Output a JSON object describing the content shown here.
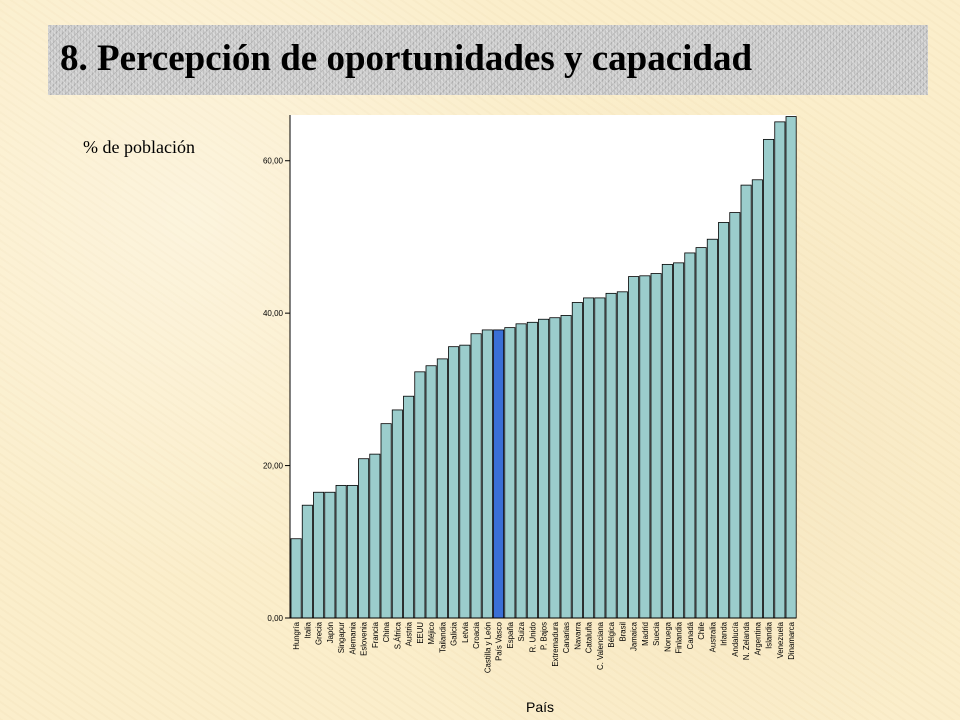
{
  "slide": {
    "title": "8. Percepción de oportunidades y capacidad",
    "y_axis_label": "% de población"
  },
  "colors": {
    "bar_fill": "#9bcdcc",
    "highlight_fill": "#3a6fd6",
    "plot_background": "#ffffff",
    "banner": "#c9c9c9"
  },
  "chart_data": {
    "type": "bar",
    "title": "",
    "xlabel": "País",
    "ylabel": "% de población",
    "ylim": [
      0,
      66
    ],
    "yticks": [
      0,
      20,
      40,
      60
    ],
    "ytick_labels": [
      "0,00",
      "20,00",
      "40,00",
      "60,00"
    ],
    "grid": false,
    "highlight": "País Vasco",
    "categories": [
      "Hungría",
      "Italia",
      "Grecia",
      "Japón",
      "Singapur",
      "Alemania",
      "Eslovenia",
      "Francia",
      "China",
      "S.África",
      "Austria",
      "EEUU",
      "Méjico",
      "Tailandia",
      "Galicia",
      "Letvia",
      "Croacia",
      "Castilla y León",
      "País Vasco",
      "España",
      "Suiza",
      "R. Unido",
      "P. Bajos",
      "Extremadura",
      "Canarias",
      "Navarra",
      "Cataluña",
      "C. Valenciana",
      "Bélgica",
      "Brasil",
      "Jamaica",
      "Madrid",
      "Suecia",
      "Noruega",
      "Finlandia",
      "Canadá",
      "Chile",
      "Australia",
      "Irlanda",
      "Andalucía",
      "N. Zelanda",
      "Argentina",
      "Islandia",
      "Venezuela",
      "Dinamarca"
    ],
    "values": [
      10.4,
      14.8,
      16.5,
      16.5,
      17.4,
      17.4,
      20.9,
      21.5,
      25.5,
      27.3,
      29.1,
      32.3,
      33.1,
      34.0,
      35.6,
      35.8,
      37.3,
      37.8,
      37.8,
      38.1,
      38.6,
      38.8,
      39.2,
      39.4,
      39.7,
      41.4,
      42.0,
      42.0,
      42.6,
      42.8,
      44.8,
      44.9,
      45.2,
      46.4,
      46.6,
      47.9,
      48.6,
      49.7,
      51.9,
      53.2,
      56.8,
      57.5,
      62.8,
      65.1,
      65.8
    ]
  }
}
